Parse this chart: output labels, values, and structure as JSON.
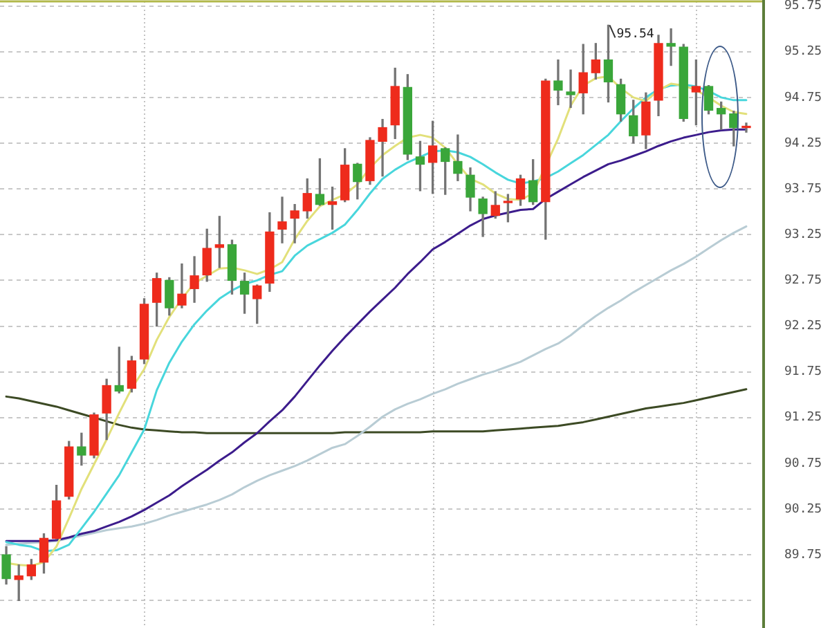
{
  "chart_data": {
    "type": "candlestick",
    "categories": [
      null,
      null,
      null,
      null,
      null,
      null,
      null,
      null,
      null,
      null,
      null,
      null,
      null,
      null,
      null,
      null,
      null,
      null,
      null,
      null,
      null,
      null,
      null,
      null,
      null,
      null,
      null,
      null,
      null,
      null,
      null,
      null,
      null,
      null,
      null,
      null,
      null,
      null,
      null,
      null,
      null,
      null,
      null,
      null,
      null,
      null,
      null,
      null,
      null,
      null,
      null,
      null,
      null,
      null,
      null,
      null,
      null,
      null,
      null,
      null
    ],
    "ohlc": [
      [
        89.75,
        89.84,
        89.43,
        89.49
      ],
      [
        89.48,
        89.64,
        89.25,
        89.52
      ],
      [
        89.52,
        89.7,
        89.48,
        89.64
      ],
      [
        89.67,
        89.98,
        89.55,
        89.93
      ],
      [
        89.93,
        90.51,
        89.92,
        90.34
      ],
      [
        90.39,
        90.99,
        90.36,
        90.93
      ],
      [
        90.93,
        91.08,
        90.73,
        90.84
      ],
      [
        90.84,
        91.3,
        90.81,
        91.28
      ],
      [
        91.3,
        91.67,
        91.01,
        91.6
      ],
      [
        91.6,
        92.02,
        91.52,
        91.54
      ],
      [
        91.57,
        91.92,
        91.53,
        91.87
      ],
      [
        91.89,
        92.55,
        91.84,
        92.49
      ],
      [
        92.51,
        92.83,
        92.25,
        92.77
      ],
      [
        92.75,
        92.78,
        92.37,
        92.45
      ],
      [
        92.48,
        92.93,
        92.45,
        92.6
      ],
      [
        92.66,
        93.01,
        92.51,
        92.8
      ],
      [
        92.81,
        93.31,
        92.74,
        93.1
      ],
      [
        93.11,
        93.45,
        92.89,
        93.14
      ],
      [
        93.14,
        93.19,
        92.6,
        92.75
      ],
      [
        92.74,
        92.83,
        92.39,
        92.6
      ],
      [
        92.55,
        92.7,
        92.28,
        92.69
      ],
      [
        92.72,
        93.49,
        92.63,
        93.28
      ],
      [
        93.31,
        93.66,
        93.16,
        93.39
      ],
      [
        93.43,
        93.58,
        93.16,
        93.51
      ],
      [
        93.51,
        93.86,
        93.43,
        93.7
      ],
      [
        93.69,
        94.08,
        93.57,
        93.58
      ],
      [
        93.58,
        93.77,
        93.31,
        93.61
      ],
      [
        93.63,
        94.19,
        93.61,
        94.01
      ],
      [
        94.02,
        94.03,
        93.64,
        93.83
      ],
      [
        93.84,
        94.31,
        93.8,
        94.28
      ],
      [
        94.27,
        94.51,
        93.89,
        94.42
      ],
      [
        94.45,
        95.07,
        94.3,
        94.87
      ],
      [
        94.86,
        95.0,
        94.07,
        94.13
      ],
      [
        94.1,
        94.27,
        93.73,
        94.02
      ],
      [
        94.04,
        94.49,
        93.7,
        94.22
      ],
      [
        94.19,
        94.2,
        93.69,
        94.05
      ],
      [
        94.05,
        94.34,
        93.84,
        93.92
      ],
      [
        93.9,
        93.98,
        93.51,
        93.66
      ],
      [
        93.64,
        93.66,
        93.23,
        93.48
      ],
      [
        93.46,
        93.72,
        93.43,
        93.57
      ],
      [
        93.6,
        93.69,
        93.39,
        93.61
      ],
      [
        93.64,
        93.9,
        93.57,
        93.86
      ],
      [
        93.84,
        94.07,
        93.58,
        93.61
      ],
      [
        93.61,
        94.95,
        93.2,
        94.93
      ],
      [
        94.93,
        95.16,
        94.67,
        94.83
      ],
      [
        94.81,
        95.05,
        94.64,
        94.78
      ],
      [
        94.8,
        95.33,
        94.57,
        95.02
      ],
      [
        95.02,
        95.34,
        94.95,
        95.16
      ],
      [
        95.16,
        95.54,
        94.7,
        94.92
      ],
      [
        94.89,
        94.95,
        94.49,
        94.57
      ],
      [
        94.55,
        94.72,
        94.25,
        94.33
      ],
      [
        94.34,
        94.8,
        94.19,
        94.7
      ],
      [
        94.72,
        95.43,
        94.55,
        95.34
      ],
      [
        95.34,
        95.5,
        95.1,
        95.31
      ],
      [
        95.3,
        95.33,
        94.49,
        94.52
      ],
      [
        94.81,
        95.16,
        94.45,
        94.87
      ],
      [
        94.87,
        94.88,
        94.57,
        94.61
      ],
      [
        94.63,
        94.7,
        94.4,
        94.57
      ],
      [
        94.57,
        94.6,
        94.22,
        94.42
      ],
      [
        94.42,
        94.47,
        94.37,
        94.43
      ]
    ],
    "colors": [
      "#3aa63a",
      "#ee2b1c",
      "#ee2b1c",
      "#ee2b1c",
      "#ee2b1c",
      "#ee2b1c",
      "#3aa63a",
      "#ee2b1c",
      "#ee2b1c",
      "#3aa63a",
      "#ee2b1c",
      "#ee2b1c",
      "#ee2b1c",
      "#3aa63a",
      "#ee2b1c",
      "#ee2b1c",
      "#ee2b1c",
      "#ee2b1c",
      "#3aa63a",
      "#3aa63a",
      "#ee2b1c",
      "#ee2b1c",
      "#ee2b1c",
      "#ee2b1c",
      "#ee2b1c",
      "#3aa63a",
      "#ee2b1c",
      "#ee2b1c",
      "#3aa63a",
      "#ee2b1c",
      "#ee2b1c",
      "#ee2b1c",
      "#3aa63a",
      "#3aa63a",
      "#ee2b1c",
      "#3aa63a",
      "#3aa63a",
      "#3aa63a",
      "#3aa63a",
      "#ee2b1c",
      "#ee2b1c",
      "#ee2b1c",
      "#3aa63a",
      "#ee2b1c",
      "#3aa63a",
      "#3aa63a",
      "#ee2b1c",
      "#ee2b1c",
      "#3aa63a",
      "#3aa63a",
      "#3aa63a",
      "#ee2b1c",
      "#ee2b1c",
      "#3aa63a",
      "#3aa63a",
      "#ee2b1c",
      "#3aa63a",
      "#3aa63a",
      "#3aa63a",
      "#ee2b1c"
    ],
    "series": [
      {
        "type": "line",
        "color": "#e2e07a",
        "values": [
          89.66,
          89.64,
          89.63,
          89.67,
          89.84,
          90.15,
          90.47,
          90.74,
          91.01,
          91.3,
          91.57,
          91.78,
          92.1,
          92.35,
          92.55,
          92.72,
          92.8,
          92.88,
          92.89,
          92.86,
          92.82,
          92.87,
          92.95,
          93.2,
          93.4,
          93.56,
          93.63,
          93.69,
          93.8,
          93.98,
          94.12,
          94.22,
          94.31,
          94.34,
          94.31,
          94.2,
          94.02,
          93.86,
          93.8,
          93.7,
          93.64,
          93.63,
          93.7,
          null,
          94.3,
          94.66,
          94.88,
          94.96,
          94.98,
          94.85,
          94.75,
          94.71,
          94.83,
          94.9,
          94.88,
          94.83,
          94.75,
          94.66,
          94.59,
          94.57
        ]
      },
      {
        "type": "line",
        "color": "#48d6dc",
        "values": [
          89.89,
          89.86,
          89.84,
          89.79,
          89.8,
          89.86,
          90.04,
          90.22,
          90.42,
          90.62,
          90.87,
          91.12,
          91.55,
          91.85,
          92.08,
          92.27,
          92.42,
          92.55,
          92.64,
          92.71,
          92.75,
          92.81,
          92.85,
          93.02,
          93.13,
          93.2,
          93.27,
          93.36,
          93.52,
          93.7,
          93.86,
          93.96,
          94.04,
          94.1,
          94.16,
          94.17,
          94.15,
          94.1,
          94.02,
          93.93,
          93.85,
          93.81,
          93.83,
          93.87,
          93.94,
          94.03,
          94.12,
          94.23,
          94.34,
          94.49,
          94.63,
          94.75,
          94.84,
          94.88,
          94.89,
          94.87,
          94.82,
          94.75,
          94.72,
          94.72
        ]
      },
      {
        "type": "line",
        "color": "#3c1c8c",
        "values": [
          89.9,
          89.9,
          89.9,
          89.9,
          89.91,
          89.94,
          89.98,
          90.01,
          90.06,
          90.11,
          90.17,
          90.24,
          90.32,
          90.4,
          90.5,
          90.59,
          90.68,
          90.78,
          90.87,
          90.98,
          91.08,
          91.21,
          91.33,
          91.48,
          91.65,
          91.82,
          91.98,
          92.13,
          92.27,
          92.41,
          92.54,
          92.67,
          92.82,
          92.95,
          93.09,
          93.17,
          93.26,
          93.35,
          93.42,
          93.46,
          93.49,
          93.52,
          93.53,
          93.64,
          93.72,
          93.8,
          93.88,
          93.95,
          94.02,
          94.06,
          94.11,
          94.16,
          94.22,
          94.27,
          94.31,
          94.34,
          94.37,
          94.39,
          94.4,
          94.4
        ]
      },
      {
        "type": "line",
        "color": "#b8ccd4",
        "values": [
          89.86,
          89.87,
          89.88,
          89.89,
          89.9,
          89.93,
          89.96,
          89.99,
          90.02,
          90.04,
          90.06,
          90.09,
          90.13,
          90.18,
          90.22,
          90.26,
          90.3,
          90.35,
          90.41,
          90.49,
          90.56,
          90.62,
          90.67,
          90.72,
          90.78,
          90.85,
          90.92,
          90.96,
          91.05,
          91.15,
          91.26,
          91.34,
          91.4,
          91.45,
          91.51,
          91.56,
          91.62,
          91.67,
          91.72,
          91.76,
          91.81,
          91.86,
          91.93,
          92.0,
          92.06,
          92.15,
          92.26,
          92.36,
          92.45,
          92.53,
          92.62,
          92.7,
          92.78,
          92.86,
          92.93,
          93.01,
          93.1,
          93.19,
          93.27,
          93.34
        ]
      },
      {
        "type": "line",
        "color": "#3c4a24",
        "values": [
          91.48,
          91.46,
          91.43,
          91.4,
          91.37,
          91.33,
          91.29,
          91.25,
          91.21,
          91.17,
          91.14,
          91.12,
          91.11,
          91.1,
          91.09,
          91.09,
          91.08,
          91.08,
          91.08,
          91.08,
          91.08,
          91.08,
          91.08,
          91.08,
          91.08,
          91.08,
          91.08,
          91.09,
          91.09,
          91.09,
          91.09,
          91.09,
          91.09,
          91.09,
          91.1,
          91.1,
          91.1,
          91.1,
          91.1,
          91.11,
          91.12,
          91.13,
          91.14,
          91.15,
          91.16,
          91.18,
          91.2,
          91.23,
          91.26,
          91.29,
          91.32,
          91.35,
          91.37,
          91.39,
          91.41,
          91.44,
          91.47,
          91.5,
          91.53,
          91.56
        ]
      }
    ],
    "ylim": [
      88.95,
      95.8
    ],
    "yticks": [
      {
        "value": 89.25,
        "label": null
      },
      89.75,
      90.25,
      90.75,
      91.25,
      91.75,
      92.25,
      92.75,
      93.25,
      93.75,
      94.25,
      94.75,
      95.25,
      95.75
    ],
    "annotations": [
      "95.54"
    ],
    "grid": true,
    "legend": false,
    "marker": "none",
    "tick_labels": "y"
  }
}
